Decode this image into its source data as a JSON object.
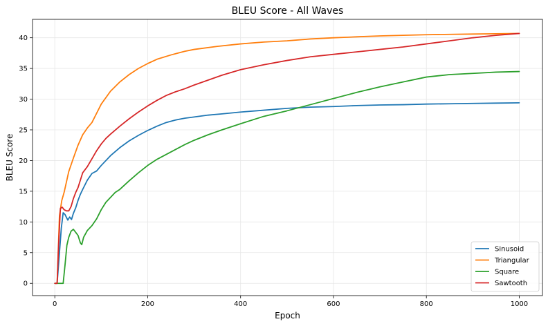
{
  "chart_data": {
    "type": "line",
    "title": "BLEU Score - All Waves",
    "xlabel": "Epoch",
    "ylabel": "BLEU Score",
    "xlim": [
      -48,
      1050
    ],
    "ylim": [
      -2,
      43
    ],
    "xticks": [
      0,
      200,
      400,
      600,
      800,
      1000
    ],
    "yticks": [
      0,
      5,
      10,
      15,
      20,
      25,
      30,
      35,
      40
    ],
    "grid": true,
    "legend_position": "bottom-right",
    "series": [
      {
        "name": "Sinusoid",
        "color": "#1f77b4",
        "x": [
          0,
          5,
          10,
          14,
          18,
          22,
          28,
          32,
          36,
          40,
          45,
          50,
          55,
          60,
          70,
          80,
          90,
          100,
          120,
          140,
          160,
          180,
          200,
          220,
          240,
          260,
          280,
          300,
          330,
          360,
          400,
          450,
          500,
          550,
          600,
          650,
          700,
          750,
          800,
          850,
          900,
          950,
          1000
        ],
        "y": [
          0,
          0,
          5,
          9,
          11.5,
          11.2,
          10.3,
          10.8,
          10.4,
          11.4,
          12.3,
          13.5,
          14.5,
          15.3,
          16.8,
          17.9,
          18.3,
          19.2,
          20.8,
          22.1,
          23.2,
          24.1,
          24.9,
          25.6,
          26.2,
          26.6,
          26.9,
          27.1,
          27.4,
          27.6,
          27.9,
          28.2,
          28.5,
          28.7,
          28.8,
          28.95,
          29.05,
          29.1,
          29.2,
          29.25,
          29.3,
          29.35,
          29.4
        ]
      },
      {
        "name": "Triangular",
        "color": "#ff7f0e",
        "x": [
          0,
          5,
          10,
          15,
          20,
          25,
          30,
          40,
          50,
          60,
          70,
          80,
          90,
          100,
          120,
          140,
          160,
          180,
          200,
          220,
          250,
          280,
          300,
          350,
          400,
          450,
          500,
          550,
          600,
          650,
          700,
          750,
          800,
          850,
          900,
          950,
          1000
        ],
        "y": [
          0,
          0,
          11,
          13.5,
          14.8,
          16.5,
          18.2,
          20.4,
          22.5,
          24.2,
          25.3,
          26.2,
          27.7,
          29.2,
          31.3,
          32.8,
          34.0,
          35.0,
          35.8,
          36.5,
          37.2,
          37.8,
          38.1,
          38.6,
          39.0,
          39.3,
          39.5,
          39.8,
          40.0,
          40.15,
          40.3,
          40.4,
          40.5,
          40.55,
          40.6,
          40.65,
          40.7
        ]
      },
      {
        "name": "Square",
        "color": "#2ca02c",
        "x": [
          0,
          5,
          10,
          15,
          18,
          22,
          26,
          30,
          35,
          40,
          45,
          50,
          55,
          58,
          62,
          70,
          80,
          90,
          100,
          110,
          120,
          130,
          140,
          160,
          180,
          200,
          220,
          240,
          260,
          280,
          300,
          330,
          360,
          400,
          450,
          500,
          550,
          600,
          650,
          700,
          750,
          800,
          850,
          900,
          950,
          1000
        ],
        "y": [
          0,
          0,
          0,
          0,
          0,
          3.0,
          6.2,
          7.5,
          8.5,
          8.8,
          8.3,
          7.8,
          6.6,
          6.3,
          7.5,
          8.6,
          9.4,
          10.5,
          12.0,
          13.2,
          14.0,
          14.8,
          15.3,
          16.7,
          18.0,
          19.2,
          20.2,
          21.0,
          21.8,
          22.6,
          23.3,
          24.2,
          25.0,
          26.0,
          27.2,
          28.1,
          29.1,
          30.1,
          31.1,
          32.0,
          32.8,
          33.6,
          34.0,
          34.2,
          34.4,
          34.5
        ]
      },
      {
        "name": "Sawtooth",
        "color": "#d62728",
        "x": [
          0,
          5,
          8,
          12,
          16,
          20,
          25,
          30,
          35,
          40,
          45,
          50,
          55,
          60,
          70,
          80,
          90,
          100,
          110,
          120,
          140,
          160,
          180,
          200,
          220,
          240,
          260,
          280,
          300,
          330,
          360,
          400,
          450,
          500,
          550,
          600,
          650,
          700,
          750,
          800,
          850,
          900,
          950,
          1000
        ],
        "y": [
          0,
          0,
          6,
          12.2,
          12.4,
          12.0,
          11.8,
          11.8,
          12.5,
          13.8,
          14.8,
          15.6,
          16.8,
          18.0,
          19.0,
          20.3,
          21.6,
          22.7,
          23.6,
          24.3,
          25.6,
          26.8,
          27.9,
          28.9,
          29.8,
          30.6,
          31.2,
          31.7,
          32.3,
          33.1,
          33.9,
          34.8,
          35.6,
          36.3,
          36.9,
          37.3,
          37.7,
          38.1,
          38.5,
          39.0,
          39.5,
          40.0,
          40.4,
          40.7
        ]
      }
    ]
  }
}
